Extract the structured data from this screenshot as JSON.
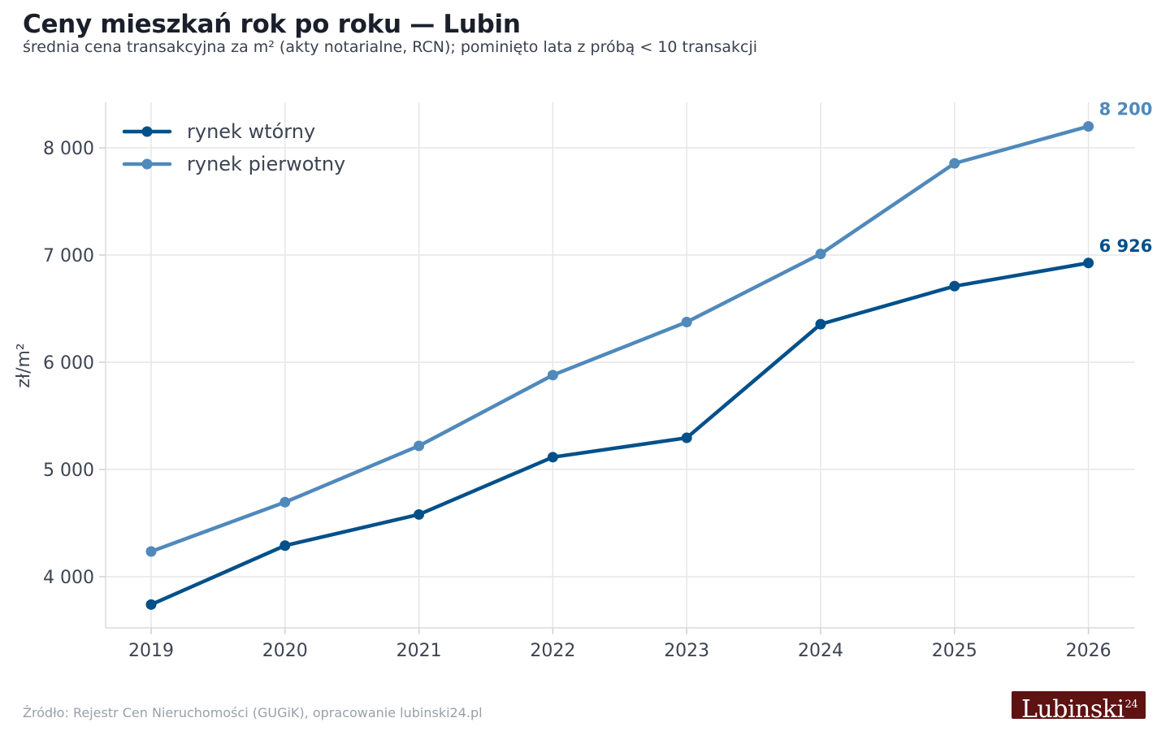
{
  "title": "Ceny mieszkań rok po roku — Lubin",
  "subtitle": "średnia cena transakcyjna za m² (akty notarialne, RCN); pominięto lata z próbą < 10 transakcji",
  "source": "Źródło: Rejestr Cen Nieruchomości (GUGiK), opracowanie lubinski24.pl",
  "logo": {
    "text": "Lubinski",
    "sup": "24"
  },
  "colors": {
    "secondary": "#00508a",
    "primary": "#5089bb",
    "grid": "#e6e6e6"
  },
  "chart_data": {
    "type": "line",
    "x": [
      "2019",
      "2020",
      "2021",
      "2022",
      "2023",
      "2024",
      "2025",
      "2026"
    ],
    "ylabel": "zł/m²",
    "ylim": [
      3500,
      8400
    ],
    "yticks": [
      4000,
      5000,
      6000,
      7000,
      8000
    ],
    "ytick_labels": [
      "4 000",
      "5 000",
      "6 000",
      "7 000",
      "8 000"
    ],
    "grid": true,
    "legend": "top-left",
    "series": [
      {
        "name": "rynek wtórny",
        "color": "#00508a",
        "values": [
          3740,
          4290,
          4580,
          5115,
          5295,
          6355,
          6710,
          6926
        ],
        "end_label": "6 926"
      },
      {
        "name": "rynek pierwotny",
        "color": "#5089bb",
        "values": [
          4235,
          4695,
          5220,
          5880,
          6375,
          7010,
          7855,
          8200
        ],
        "end_label": "8 200"
      }
    ]
  }
}
